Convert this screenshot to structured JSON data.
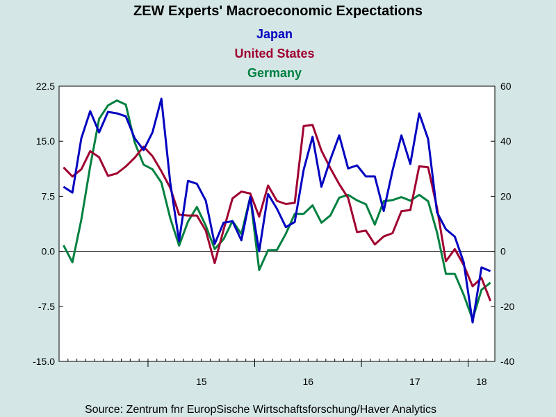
{
  "chart_data": {
    "type": "line",
    "title": "ZEW Experts' Macroeconomic Expectations",
    "legend_placement": "top-center",
    "source": "Source:  Zentrum fnr EuropSische Wirtschaftsforschung/Haver Analytics",
    "x_tick_labels": [
      "15",
      "16",
      "17",
      "18"
    ],
    "left_axis": {
      "ylim": [
        -15.0,
        22.5
      ],
      "ticks": [
        "22.5",
        "15.0",
        "7.5",
        "0.0",
        "-7.5",
        "-15.0"
      ]
    },
    "right_axis": {
      "ylim": [
        -40,
        60
      ],
      "ticks": [
        "60",
        "40",
        "20",
        "0",
        "-20",
        "-40"
      ]
    },
    "zero_line": true,
    "series": [
      {
        "name": "Japan",
        "color": "#0000c0",
        "axis": "left",
        "values": [
          8.8,
          8.0,
          15.4,
          19.1,
          16.2,
          19.0,
          18.8,
          18.4,
          15.4,
          13.8,
          16.2,
          20.8,
          9.4,
          1.4,
          9.6,
          9.2,
          6.9,
          1.0,
          3.9,
          4.1,
          1.5,
          7.4,
          0.0,
          7.8,
          5.8,
          3.3,
          4.0,
          11.1,
          15.6,
          8.8,
          12.5,
          15.8,
          11.3,
          11.7,
          10.2,
          10.2,
          5.5,
          11.0,
          15.8,
          11.9,
          18.8,
          15.3,
          5.3,
          3.0,
          2.0,
          -1.5,
          -9.7,
          -2.2,
          -2.7
        ]
      },
      {
        "name": "United States",
        "color": "#a00030",
        "axis": "right",
        "values": [
          30.5,
          27.2,
          29.8,
          36.4,
          34.2,
          27.4,
          28.3,
          30.8,
          34.0,
          38.0,
          34.6,
          29.1,
          23.1,
          13.3,
          13.0,
          13.0,
          7.5,
          -4.3,
          7.8,
          19.2,
          21.7,
          21.0,
          12.6,
          23.9,
          18.3,
          17.2,
          17.6,
          45.5,
          45.9,
          36.6,
          30.2,
          24.4,
          19.4,
          7.0,
          7.5,
          2.5,
          5.4,
          6.6,
          14.6,
          15.0,
          30.9,
          30.5,
          15.8,
          -3.6,
          0.8,
          -5.0,
          -12.7,
          -9.7,
          -18.0
        ]
      },
      {
        "name": "Germany",
        "color": "#008040",
        "axis": "right",
        "values": [
          2.2,
          -4.0,
          11.5,
          30.9,
          48.1,
          53.0,
          54.8,
          53.3,
          39.6,
          31.5,
          29.8,
          25.0,
          12.1,
          2.1,
          10.8,
          16.1,
          9.3,
          0.8,
          4.4,
          11.0,
          6.3,
          19.8,
          -6.8,
          0.4,
          0.5,
          6.4,
          13.6,
          13.6,
          16.7,
          10.4,
          13.0,
          19.5,
          20.5,
          18.5,
          17.1,
          9.7,
          18.2,
          18.6,
          19.7,
          18.4,
          20.5,
          18.2,
          6.9,
          -8.2,
          -8.2,
          -15.8,
          -24.7,
          -14.0,
          -11.4
        ]
      }
    ]
  }
}
